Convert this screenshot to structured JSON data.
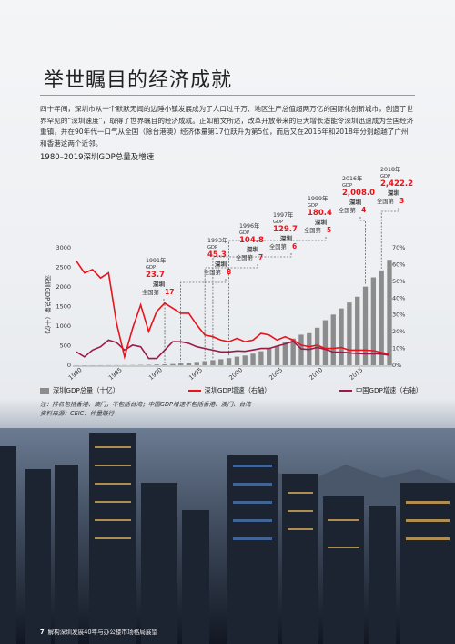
{
  "page": {
    "title": "举世瞩目的经济成就",
    "intro": "四十年间，深圳市从一个默默无闻的边陲小镇发展成为了人口过千万、地区生产总值超两万亿的国际化创新城市，创造了世界罕见的“深圳速度”，取得了世界瞩目的经济成就。正如前文所述，改革开放带来的巨大增长潜能令深圳迅速成为全国经济重镇，并在90年代一口气从全国（除台港澳）经济体量第17位跃升为第5位，而后又在2016年和2018年分别超越了广州和香港这两个近邻。",
    "chart_title": "1980–2019深圳GDP总量及增速",
    "notes": [
      "注：排名包括香港、澳门，不包括台湾；中国GDP增速不包括香港、澳门、台湾",
      "资料来源：CEIC、仲量联行"
    ],
    "footer_page": "7",
    "footer_text": "解构深圳发展40年与办公楼市场格局展望"
  },
  "colors": {
    "gdp_bar": "#8c8c8c",
    "sz_growth": "#e8141c",
    "cn_growth": "#9b1b48",
    "annotation_red": "#e8141c"
  },
  "chart_data": {
    "type": "bar",
    "title": "1980–2019深圳GDP总量及增速",
    "x": [
      1980,
      1981,
      1982,
      1983,
      1984,
      1985,
      1986,
      1987,
      1988,
      1989,
      1990,
      1991,
      1992,
      1993,
      1994,
      1995,
      1996,
      1997,
      1998,
      1999,
      2000,
      2001,
      2002,
      2003,
      2004,
      2005,
      2006,
      2007,
      2008,
      2009,
      2010,
      2011,
      2012,
      2013,
      2014,
      2015,
      2016,
      2017,
      2018,
      2019
    ],
    "x_ticks": [
      1980,
      1985,
      1990,
      1995,
      2000,
      2005,
      2010,
      2015
    ],
    "ylabel_left": "深圳GDP总量（十亿）",
    "ylim_left": [
      0,
      3000
    ],
    "yticks_left": [
      0,
      500,
      1000,
      1500,
      2000,
      2500,
      3000
    ],
    "ylim_right": [
      0,
      0.7
    ],
    "yticks_right": [
      "0%",
      "10%",
      "20%",
      "30%",
      "40%",
      "50%",
      "60%",
      "70%"
    ],
    "series": [
      {
        "name": "深圳GDP总量（十亿）",
        "type": "bar",
        "axis": "left",
        "values": [
          0.3,
          0.5,
          0.8,
          1.3,
          2.3,
          3.9,
          4.2,
          5.6,
          8.7,
          11.6,
          17.2,
          23.7,
          31.7,
          45.3,
          61.5,
          84.2,
          104.8,
          129.7,
          153.5,
          180.4,
          219.2,
          248.2,
          296.9,
          358.6,
          428.2,
          495.1,
          581.4,
          680.2,
          780.7,
          820.1,
          958.2,
          1150.6,
          1295.0,
          1450.0,
          1600.2,
          1750.3,
          2008.0,
          2243.8,
          2422.2,
          2692.7
        ]
      },
      {
        "name": "深圳GDP增速（右轴）",
        "type": "line",
        "axis": "right",
        "values": [
          0.62,
          0.55,
          0.57,
          0.52,
          0.55,
          0.25,
          0.05,
          0.22,
          0.36,
          0.2,
          0.32,
          0.37,
          0.34,
          0.31,
          0.31,
          0.24,
          0.18,
          0.17,
          0.15,
          0.14,
          0.16,
          0.14,
          0.15,
          0.19,
          0.18,
          0.15,
          0.17,
          0.15,
          0.12,
          0.11,
          0.12,
          0.1,
          0.1,
          0.105,
          0.09,
          0.09,
          0.09,
          0.087,
          0.076,
          0.067
        ]
      },
      {
        "name": "中国GDP增速（右轴）",
        "type": "line",
        "axis": "right",
        "values": [
          0.08,
          0.05,
          0.09,
          0.11,
          0.15,
          0.135,
          0.09,
          0.12,
          0.11,
          0.04,
          0.04,
          0.09,
          0.14,
          0.14,
          0.13,
          0.11,
          0.1,
          0.09,
          0.08,
          0.08,
          0.085,
          0.083,
          0.091,
          0.1,
          0.1,
          0.114,
          0.127,
          0.142,
          0.097,
          0.094,
          0.106,
          0.095,
          0.079,
          0.078,
          0.074,
          0.07,
          0.068,
          0.069,
          0.067,
          0.06
        ]
      }
    ],
    "annotations": [
      {
        "year": 1991,
        "year_text": "1991年",
        "gdp_label": "GDP",
        "gdp": "23.7",
        "city": "深圳",
        "rank_text": "全国第",
        "rank": "17"
      },
      {
        "year": 1993,
        "year_text": "1993年",
        "gdp_label": "GDP",
        "gdp": "45.3",
        "city": "深圳",
        "rank_text": "全国第",
        "rank": "8"
      },
      {
        "year": 1996,
        "year_text": "1996年",
        "gdp_label": "GDP",
        "gdp": "104.8",
        "city": "深圳",
        "rank_text": "全国第",
        "rank": "7"
      },
      {
        "year": 1997,
        "year_text": "1997年",
        "gdp_label": "GDP",
        "gdp": "129.7",
        "city": "深圳",
        "rank_text": "全国第",
        "rank": "6"
      },
      {
        "year": 1999,
        "year_text": "1999年",
        "gdp_label": "GDP",
        "gdp": "180.4",
        "city": "深圳",
        "rank_text": "全国第",
        "rank": "5"
      },
      {
        "year": 2016,
        "year_text": "2016年",
        "gdp_label": "GDP",
        "gdp": "2,008.0",
        "city": "深圳",
        "rank_text": "全国第",
        "rank": "4"
      },
      {
        "year": 2018,
        "year_text": "2018年",
        "gdp_label": "GDP",
        "gdp": "2,422.2",
        "city": "深圳",
        "rank_text": "全国第",
        "rank": "3"
      }
    ]
  }
}
